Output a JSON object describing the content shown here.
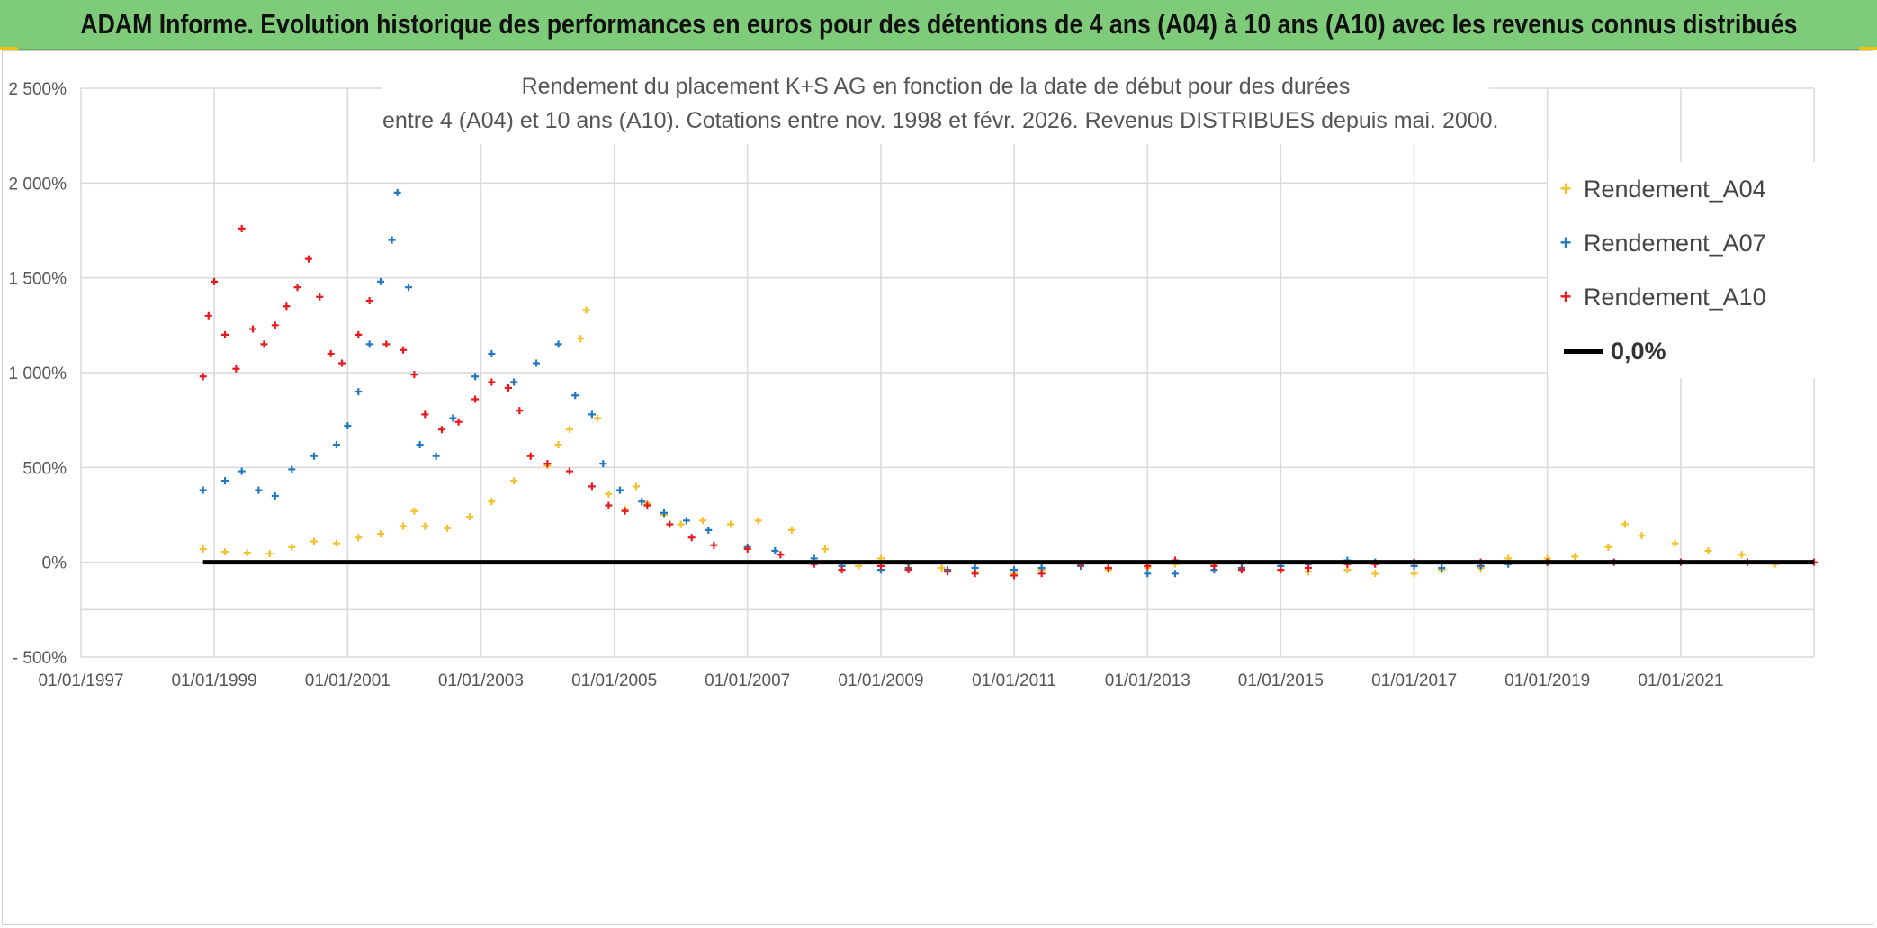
{
  "banner": {
    "title": "ADAM Informe. Evolution historique des performances en euros pour des détentions de 4 ans (A04) à 10 ans (A10) avec les revenus connus distribués"
  },
  "colors": {
    "banner": "#7ecb7a",
    "A04": "#f5c02a",
    "A07": "#1f78c1",
    "A10": "#e8191e",
    "zero": "#000000",
    "grid": "#d9d9d9"
  },
  "chart_data": {
    "type": "scatter",
    "title_line1": "Rendement du placement K+S AG en fonction de la date de début pour des durées",
    "title_line2": "entre 4 (A04) et 10 ans (A10). Cotations entre nov. 1998 et févr. 2026. Revenus DISTRIBUES depuis mai. 2000.",
    "x_ticks": [
      "01/01/1997",
      "01/01/1999",
      "01/01/2001",
      "01/01/2003",
      "01/01/2005",
      "01/01/2007",
      "01/01/2009",
      "01/01/2011",
      "01/01/2013",
      "01/01/2015",
      "01/01/2017",
      "01/01/2019",
      "01/01/2021"
    ],
    "y_ticks": [
      "2 500%",
      "2 000%",
      "1 500%",
      "1 000%",
      "500%",
      "0%",
      "- 500%"
    ],
    "ylim": [
      -500,
      2500
    ],
    "xlim": [
      "1997-01-01",
      "2023-01-01"
    ],
    "grid": true,
    "legend_position": "top-right",
    "legend": [
      "Rendement_A04",
      "Rendement_A07",
      "Rendement_A10",
      "0,0%"
    ],
    "series": [
      {
        "name": "Rendement_A04",
        "points": [
          [
            "1998-11-01",
            70
          ],
          [
            "1999-03-01",
            55
          ],
          [
            "1999-07-01",
            50
          ],
          [
            "1999-11-01",
            45
          ],
          [
            "2000-03-01",
            80
          ],
          [
            "2000-07-01",
            110
          ],
          [
            "2000-11-01",
            100
          ],
          [
            "2001-03-01",
            130
          ],
          [
            "2001-07-01",
            150
          ],
          [
            "2001-11-01",
            190
          ],
          [
            "2002-01-01",
            270
          ],
          [
            "2002-03-01",
            190
          ],
          [
            "2002-07-01",
            180
          ],
          [
            "2002-11-01",
            240
          ],
          [
            "2003-03-01",
            320
          ],
          [
            "2003-07-01",
            430
          ],
          [
            "2003-10-01",
            560
          ],
          [
            "2004-01-01",
            510
          ],
          [
            "2004-03-01",
            620
          ],
          [
            "2004-05-01",
            700
          ],
          [
            "2004-07-01",
            1180
          ],
          [
            "2004-08-01",
            1330
          ],
          [
            "2004-10-01",
            760
          ],
          [
            "2004-12-01",
            360
          ],
          [
            "2005-03-01",
            280
          ],
          [
            "2005-05-01",
            400
          ],
          [
            "2005-07-01",
            310
          ],
          [
            "2005-10-01",
            250
          ],
          [
            "2006-01-01",
            200
          ],
          [
            "2006-05-01",
            220
          ],
          [
            "2006-10-01",
            200
          ],
          [
            "2007-03-01",
            220
          ],
          [
            "2007-09-01",
            170
          ],
          [
            "2008-03-01",
            70
          ],
          [
            "2008-09-01",
            -20
          ],
          [
            "2009-01-01",
            20
          ],
          [
            "2009-06-01",
            -10
          ],
          [
            "2009-12-01",
            -30
          ],
          [
            "2010-06-01",
            -50
          ],
          [
            "2011-01-01",
            -60
          ],
          [
            "2011-06-01",
            -40
          ],
          [
            "2012-01-01",
            -20
          ],
          [
            "2012-06-01",
            -40
          ],
          [
            "2013-01-01",
            -30
          ],
          [
            "2013-06-01",
            -10
          ],
          [
            "2014-01-01",
            -20
          ],
          [
            "2014-06-01",
            -30
          ],
          [
            "2015-01-01",
            -40
          ],
          [
            "2015-06-01",
            -50
          ],
          [
            "2016-01-01",
            -40
          ],
          [
            "2016-06-01",
            -60
          ],
          [
            "2017-01-01",
            -60
          ],
          [
            "2017-06-01",
            -40
          ],
          [
            "2018-01-01",
            -30
          ],
          [
            "2018-06-01",
            20
          ],
          [
            "2019-01-01",
            20
          ],
          [
            "2019-06-01",
            30
          ],
          [
            "2019-12-01",
            80
          ],
          [
            "2020-03-01",
            200
          ],
          [
            "2020-06-01",
            140
          ],
          [
            "2020-12-01",
            100
          ],
          [
            "2021-06-01",
            60
          ],
          [
            "2021-12-01",
            40
          ],
          [
            "2022-06-01",
            -10
          ],
          [
            "2023-01-01",
            0
          ]
        ]
      },
      {
        "name": "Rendement_A07",
        "points": [
          [
            "1998-11-01",
            380
          ],
          [
            "1999-03-01",
            430
          ],
          [
            "1999-06-01",
            480
          ],
          [
            "1999-09-01",
            380
          ],
          [
            "1999-12-01",
            350
          ],
          [
            "2000-03-01",
            490
          ],
          [
            "2000-07-01",
            560
          ],
          [
            "2000-11-01",
            620
          ],
          [
            "2001-01-01",
            720
          ],
          [
            "2001-03-01",
            900
          ],
          [
            "2001-05-01",
            1150
          ],
          [
            "2001-07-01",
            1480
          ],
          [
            "2001-09-01",
            1700
          ],
          [
            "2001-10-01",
            1950
          ],
          [
            "2001-12-01",
            1450
          ],
          [
            "2002-02-01",
            620
          ],
          [
            "2002-05-01",
            560
          ],
          [
            "2002-08-01",
            760
          ],
          [
            "2002-12-01",
            980
          ],
          [
            "2003-03-01",
            1100
          ],
          [
            "2003-07-01",
            950
          ],
          [
            "2003-11-01",
            1050
          ],
          [
            "2004-03-01",
            1150
          ],
          [
            "2004-06-01",
            880
          ],
          [
            "2004-09-01",
            780
          ],
          [
            "2004-11-01",
            520
          ],
          [
            "2005-02-01",
            380
          ],
          [
            "2005-06-01",
            320
          ],
          [
            "2005-10-01",
            260
          ],
          [
            "2006-02-01",
            220
          ],
          [
            "2006-06-01",
            170
          ],
          [
            "2007-01-01",
            80
          ],
          [
            "2007-06-01",
            60
          ],
          [
            "2008-01-01",
            20
          ],
          [
            "2008-06-01",
            -20
          ],
          [
            "2009-01-01",
            -40
          ],
          [
            "2009-06-01",
            -30
          ],
          [
            "2010-01-01",
            -40
          ],
          [
            "2010-06-01",
            -30
          ],
          [
            "2011-01-01",
            -40
          ],
          [
            "2011-06-01",
            -30
          ],
          [
            "2012-01-01",
            -20
          ],
          [
            "2012-06-01",
            -30
          ],
          [
            "2013-01-01",
            -60
          ],
          [
            "2013-06-01",
            -60
          ],
          [
            "2014-01-01",
            -40
          ],
          [
            "2014-06-01",
            -30
          ],
          [
            "2015-01-01",
            -20
          ],
          [
            "2015-06-01",
            -10
          ],
          [
            "2016-01-01",
            10
          ],
          [
            "2016-06-01",
            0
          ],
          [
            "2017-01-01",
            -20
          ],
          [
            "2017-06-01",
            -30
          ],
          [
            "2018-01-01",
            -20
          ],
          [
            "2018-06-01",
            -10
          ],
          [
            "2019-01-01",
            0
          ]
        ]
      },
      {
        "name": "Rendement_A10",
        "points": [
          [
            "1998-11-01",
            980
          ],
          [
            "1998-12-01",
            1300
          ],
          [
            "1999-01-01",
            1480
          ],
          [
            "1999-03-01",
            1200
          ],
          [
            "1999-05-01",
            1020
          ],
          [
            "1999-06-01",
            1760
          ],
          [
            "1999-08-01",
            1230
          ],
          [
            "1999-10-01",
            1150
          ],
          [
            "1999-12-01",
            1250
          ],
          [
            "2000-02-01",
            1350
          ],
          [
            "2000-04-01",
            1450
          ],
          [
            "2000-06-01",
            1600
          ],
          [
            "2000-08-01",
            1400
          ],
          [
            "2000-10-01",
            1100
          ],
          [
            "2000-12-01",
            1050
          ],
          [
            "2001-03-01",
            1200
          ],
          [
            "2001-05-01",
            1380
          ],
          [
            "2001-08-01",
            1150
          ],
          [
            "2001-11-01",
            1120
          ],
          [
            "2002-01-01",
            990
          ],
          [
            "2002-03-01",
            780
          ],
          [
            "2002-06-01",
            700
          ],
          [
            "2002-09-01",
            740
          ],
          [
            "2002-12-01",
            860
          ],
          [
            "2003-03-01",
            950
          ],
          [
            "2003-06-01",
            920
          ],
          [
            "2003-08-01",
            800
          ],
          [
            "2003-10-01",
            560
          ],
          [
            "2004-01-01",
            520
          ],
          [
            "2004-05-01",
            480
          ],
          [
            "2004-09-01",
            400
          ],
          [
            "2004-12-01",
            300
          ],
          [
            "2005-03-01",
            270
          ],
          [
            "2005-07-01",
            300
          ],
          [
            "2005-11-01",
            200
          ],
          [
            "2006-03-01",
            130
          ],
          [
            "2006-07-01",
            90
          ],
          [
            "2007-01-01",
            70
          ],
          [
            "2007-07-01",
            40
          ],
          [
            "2008-01-01",
            -10
          ],
          [
            "2008-06-01",
            -40
          ],
          [
            "2009-01-01",
            -20
          ],
          [
            "2009-06-01",
            -40
          ],
          [
            "2010-01-01",
            -50
          ],
          [
            "2010-06-01",
            -60
          ],
          [
            "2011-01-01",
            -70
          ],
          [
            "2011-06-01",
            -60
          ],
          [
            "2012-01-01",
            -10
          ],
          [
            "2012-06-01",
            -30
          ],
          [
            "2013-01-01",
            -20
          ],
          [
            "2013-06-01",
            10
          ],
          [
            "2014-01-01",
            -20
          ],
          [
            "2014-06-01",
            -40
          ],
          [
            "2015-01-01",
            -40
          ],
          [
            "2015-06-01",
            -30
          ],
          [
            "2016-01-01",
            -10
          ],
          [
            "2016-06-01",
            -10
          ],
          [
            "2017-01-01",
            0
          ],
          [
            "2018-01-01",
            0
          ],
          [
            "2019-01-01",
            0
          ],
          [
            "2020-01-01",
            0
          ],
          [
            "2021-01-01",
            0
          ],
          [
            "2022-01-01",
            0
          ],
          [
            "2023-01-01",
            0
          ]
        ]
      },
      {
        "name": "0,0%",
        "points": [
          [
            "1998-11-01",
            0
          ],
          [
            "2023-01-01",
            0
          ]
        ]
      }
    ]
  }
}
